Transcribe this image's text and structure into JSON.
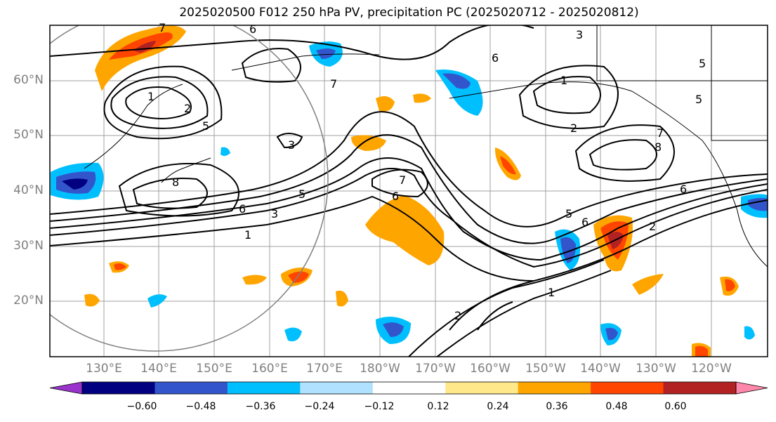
{
  "title": "2025020500 F012 250 hPa PV, precipitation PC (2025020712 - 2025020812)",
  "lat_labels": [
    "60°N",
    "50°N",
    "40°N",
    "30°N",
    "20°N"
  ],
  "lon_labels": [
    "130°E",
    "140°E",
    "150°E",
    "160°E",
    "170°E",
    "180°W",
    "170°W",
    "160°W",
    "150°W",
    "140°W",
    "130°W",
    "120°W"
  ],
  "contour_labels": [
    "1",
    "2",
    "3",
    "5",
    "6",
    "7",
    "8"
  ],
  "colorbar": {
    "ticks": [
      "−0.60",
      "−0.48",
      "−0.36",
      "−0.24",
      "−0.12",
      "0.12",
      "0.24",
      "0.36",
      "0.48",
      "0.60"
    ],
    "colors": [
      "#9933cc",
      "#000080",
      "#3355cc",
      "#00bfff",
      "#b0e2ff",
      "#ffffff",
      "#ffe88a",
      "#ffa500",
      "#ff4500",
      "#b22222",
      "#ff88aa"
    ]
  }
}
